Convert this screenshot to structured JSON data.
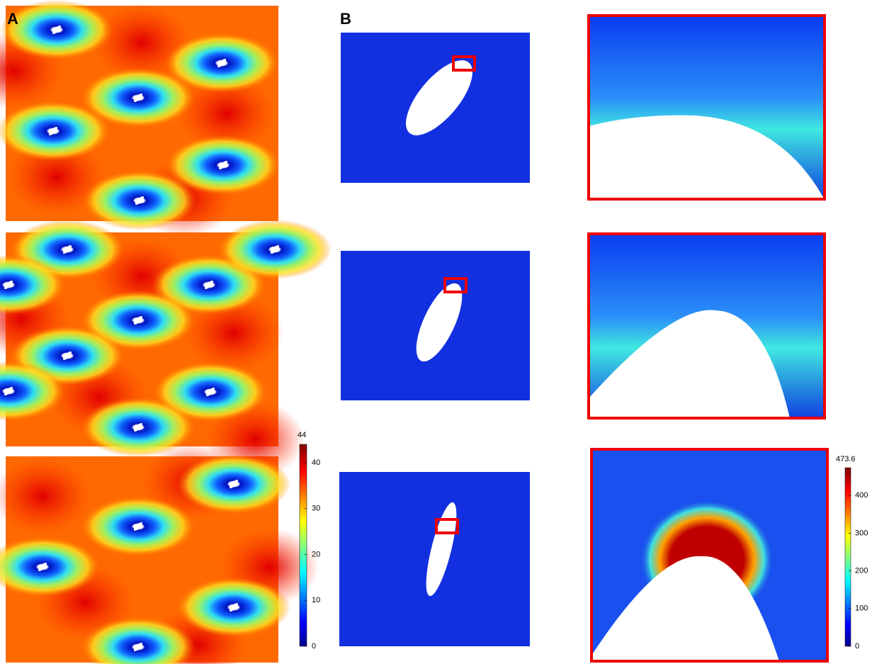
{
  "panels": {
    "a": {
      "label": "A"
    },
    "b": {
      "label": "B"
    }
  },
  "colorbars": [
    {
      "min": 0,
      "max": 44,
      "ticks": [
        0,
        10,
        20,
        30,
        40
      ]
    },
    {
      "min": 0,
      "max": 473.6,
      "ticks": [
        0,
        100,
        200,
        300,
        400
      ]
    }
  ]
}
